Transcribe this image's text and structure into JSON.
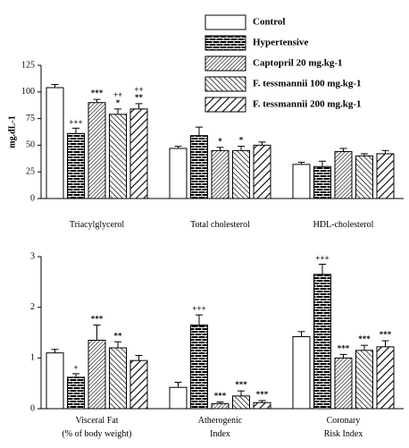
{
  "chart_data": [
    {
      "type": "bar",
      "ylabel": "mg.dL-1",
      "legend": "upper right",
      "categories": [
        [
          "Triacylglycerol"
        ],
        [
          "Total cholesterol"
        ],
        [
          "HDL-cholesterol"
        ]
      ],
      "ylim": [
        0,
        125
      ],
      "yticks": [
        0,
        25,
        50,
        75,
        100,
        125
      ],
      "series": [
        {
          "name": "Control",
          "pattern": "none",
          "values": [
            104,
            47,
            32
          ],
          "errors": [
            3,
            2,
            2
          ],
          "annotations": [
            null,
            null,
            null
          ]
        },
        {
          "name": "Hypertensive",
          "pattern": "bricks",
          "values": [
            61,
            59,
            30
          ],
          "errors": [
            5,
            8,
            5
          ],
          "annotations": [
            [
              "+++"
            ],
            null,
            null
          ]
        },
        {
          "name": "Captopril 20 mg.kg-1",
          "pattern": "dense-diag",
          "values": [
            90,
            45,
            44
          ],
          "errors": [
            3,
            3,
            3
          ],
          "annotations": [
            [
              "***"
            ],
            [
              "*"
            ],
            null
          ]
        },
        {
          "name": "F. tessmannii 100 mg.kg-1",
          "pattern": "diag",
          "values": [
            79,
            45,
            40
          ],
          "errors": [
            5,
            4,
            2
          ],
          "annotations": [
            [
              "++",
              "*"
            ],
            [
              "*"
            ],
            null
          ]
        },
        {
          "name": "F. tessmannii 200 mg.kg-1",
          "pattern": "wide-diag",
          "values": [
            84,
            50,
            42
          ],
          "errors": [
            5,
            3,
            3
          ],
          "annotations": [
            [
              "++",
              "**"
            ],
            null,
            null
          ]
        }
      ]
    },
    {
      "type": "bar",
      "categories": [
        [
          "Visceral Fat",
          "(% of body weight)"
        ],
        [
          "Atherogenic",
          "Index"
        ],
        [
          "Coronary",
          "Risk Index"
        ]
      ],
      "ylim": [
        0,
        3
      ],
      "yticks": [
        0,
        1,
        2,
        3
      ],
      "series": [
        {
          "pattern": "none",
          "values": [
            1.1,
            0.42,
            1.42
          ],
          "errors": [
            0.07,
            0.1,
            0.1
          ],
          "annotations": [
            null,
            null,
            null
          ]
        },
        {
          "pattern": "bricks",
          "values": [
            0.62,
            1.65,
            2.65
          ],
          "errors": [
            0.07,
            0.2,
            0.2
          ],
          "annotations": [
            [
              "+"
            ],
            [
              "+++"
            ],
            [
              "+++"
            ]
          ]
        },
        {
          "pattern": "dense-diag",
          "values": [
            1.35,
            0.1,
            1.0
          ],
          "errors": [
            0.3,
            0.03,
            0.07
          ],
          "annotations": [
            [
              "***"
            ],
            [
              "***"
            ],
            [
              "***"
            ]
          ]
        },
        {
          "pattern": "diag",
          "values": [
            1.2,
            0.25,
            1.15
          ],
          "errors": [
            0.12,
            0.1,
            0.1
          ],
          "annotations": [
            [
              "**"
            ],
            [
              "***"
            ],
            [
              "***"
            ]
          ]
        },
        {
          "pattern": "wide-diag",
          "values": [
            0.95,
            0.12,
            1.22
          ],
          "errors": [
            0.1,
            0.04,
            0.12
          ],
          "annotations": [
            null,
            [
              "***"
            ],
            [
              "***"
            ]
          ]
        }
      ]
    }
  ]
}
